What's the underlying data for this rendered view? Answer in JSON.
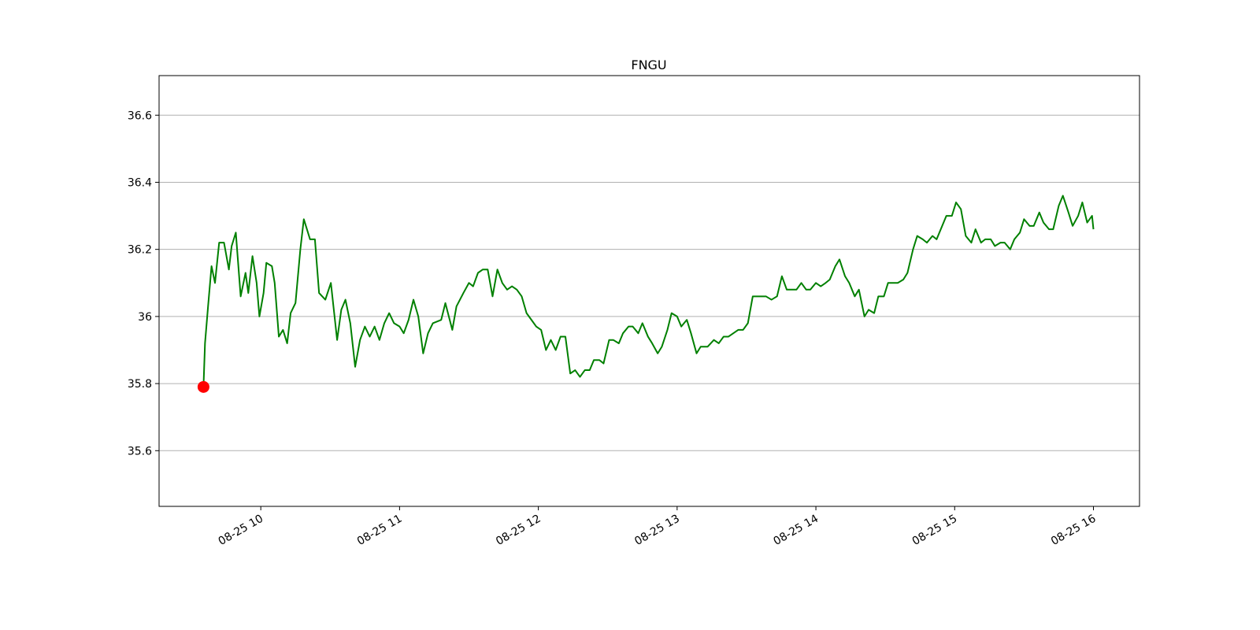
{
  "chart_data": {
    "type": "line",
    "title": "FNGU",
    "x": [
      9.587,
      9.598,
      9.62,
      9.645,
      9.67,
      9.7,
      9.735,
      9.77,
      9.79,
      9.82,
      9.855,
      9.89,
      9.91,
      9.94,
      9.97,
      9.99,
      10.02,
      10.04,
      10.08,
      10.1,
      10.13,
      10.16,
      10.19,
      10.215,
      10.25,
      10.285,
      10.31,
      10.355,
      10.39,
      10.42,
      10.465,
      10.505,
      10.55,
      10.58,
      10.61,
      10.645,
      10.68,
      10.715,
      10.75,
      10.785,
      10.82,
      10.855,
      10.89,
      10.925,
      10.96,
      11.0,
      11.03,
      11.065,
      11.1,
      11.135,
      11.17,
      11.205,
      11.24,
      11.3,
      11.33,
      11.38,
      11.41,
      11.46,
      11.5,
      11.53,
      11.565,
      11.6,
      11.635,
      11.67,
      11.705,
      11.74,
      11.775,
      11.81,
      11.845,
      11.88,
      11.915,
      11.95,
      11.985,
      12.02,
      12.055,
      12.09,
      12.125,
      12.16,
      12.195,
      12.23,
      12.265,
      12.3,
      12.335,
      12.37,
      12.4,
      12.44,
      12.47,
      12.51,
      12.54,
      12.58,
      12.61,
      12.65,
      12.68,
      12.72,
      12.75,
      12.79,
      12.82,
      12.86,
      12.89,
      12.93,
      12.96,
      13.0,
      13.03,
      13.07,
      13.1,
      13.14,
      13.17,
      13.22,
      13.265,
      13.3,
      13.335,
      13.37,
      13.405,
      13.44,
      13.475,
      13.51,
      13.545,
      13.59,
      13.64,
      13.68,
      13.72,
      13.755,
      13.79,
      13.825,
      13.86,
      13.895,
      13.93,
      13.96,
      14.0,
      14.035,
      14.07,
      14.1,
      14.14,
      14.17,
      14.21,
      14.24,
      14.28,
      14.31,
      14.35,
      14.38,
      14.42,
      14.45,
      14.49,
      14.52,
      14.56,
      14.59,
      14.63,
      14.66,
      14.7,
      14.73,
      14.77,
      14.8,
      14.84,
      14.87,
      14.91,
      14.94,
      14.98,
      15.01,
      15.045,
      15.08,
      15.12,
      15.15,
      15.19,
      15.22,
      15.26,
      15.29,
      15.33,
      15.36,
      15.4,
      15.43,
      15.47,
      15.5,
      15.54,
      15.57,
      15.61,
      15.64,
      15.68,
      15.71,
      15.75,
      15.78,
      15.82,
      15.85,
      15.89,
      15.92,
      15.955,
      15.99,
      16.0
    ],
    "series": [
      {
        "color": "#008000",
        "values": [
          35.79,
          35.92,
          36.03,
          36.15,
          36.1,
          36.22,
          36.22,
          36.14,
          36.21,
          36.25,
          36.06,
          36.13,
          36.07,
          36.18,
          36.1,
          36.0,
          36.07,
          36.16,
          36.15,
          36.1,
          35.94,
          35.96,
          35.92,
          36.01,
          36.04,
          36.2,
          36.29,
          36.23,
          36.23,
          36.07,
          36.05,
          36.1,
          35.93,
          36.02,
          36.05,
          35.98,
          35.85,
          35.93,
          35.97,
          35.94,
          35.97,
          35.93,
          35.98,
          36.01,
          35.98,
          35.97,
          35.95,
          35.99,
          36.05,
          36.0,
          35.89,
          35.95,
          35.98,
          35.99,
          36.04,
          35.96,
          36.03,
          36.07,
          36.1,
          36.09,
          36.13,
          36.14,
          36.14,
          36.06,
          36.14,
          36.1,
          36.08,
          36.09,
          36.08,
          36.06,
          36.01,
          35.99,
          35.97,
          35.96,
          35.9,
          35.93,
          35.9,
          35.94,
          35.94,
          35.83,
          35.84,
          35.82,
          35.84,
          35.84,
          35.87,
          35.87,
          35.86,
          35.93,
          35.93,
          35.92,
          35.95,
          35.97,
          35.97,
          35.95,
          35.98,
          35.94,
          35.92,
          35.89,
          35.91,
          35.96,
          36.01,
          36.0,
          35.97,
          35.99,
          35.95,
          35.89,
          35.91,
          35.91,
          35.93,
          35.92,
          35.94,
          35.94,
          35.95,
          35.96,
          35.96,
          35.98,
          36.06,
          36.06,
          36.06,
          36.05,
          36.06,
          36.12,
          36.08,
          36.08,
          36.08,
          36.1,
          36.08,
          36.08,
          36.1,
          36.09,
          36.1,
          36.11,
          36.15,
          36.17,
          36.12,
          36.1,
          36.06,
          36.08,
          36.0,
          36.02,
          36.01,
          36.06,
          36.06,
          36.1,
          36.1,
          36.1,
          36.11,
          36.13,
          36.2,
          36.24,
          36.23,
          36.22,
          36.24,
          36.23,
          36.27,
          36.3,
          36.3,
          36.34,
          36.32,
          36.24,
          36.22,
          36.26,
          36.22,
          36.23,
          36.23,
          36.21,
          36.22,
          36.22,
          36.2,
          36.23,
          36.25,
          36.29,
          36.27,
          36.27,
          36.31,
          36.28,
          36.26,
          36.26,
          36.33,
          36.36,
          36.31,
          36.27,
          36.3,
          36.34,
          36.28,
          36.3,
          36.26
        ]
      }
    ],
    "marker": {
      "x": 9.587,
      "y": 35.79,
      "color": "#ff0000"
    },
    "xlim": [
      9.267,
      16.332
    ],
    "xticks": [
      {
        "value": 10,
        "label": "08-25 10"
      },
      {
        "value": 11,
        "label": "08-25 11"
      },
      {
        "value": 12,
        "label": "08-25 12"
      },
      {
        "value": 13,
        "label": "08-25 13"
      },
      {
        "value": 14,
        "label": "08-25 14"
      },
      {
        "value": 15,
        "label": "08-25 15"
      },
      {
        "value": 16,
        "label": "08-25 16"
      }
    ],
    "ylim": [
      35.434,
      36.718
    ],
    "yticks": [
      35.6,
      35.8,
      36.0,
      36.2,
      36.4,
      36.6
    ],
    "ygrid": true
  }
}
